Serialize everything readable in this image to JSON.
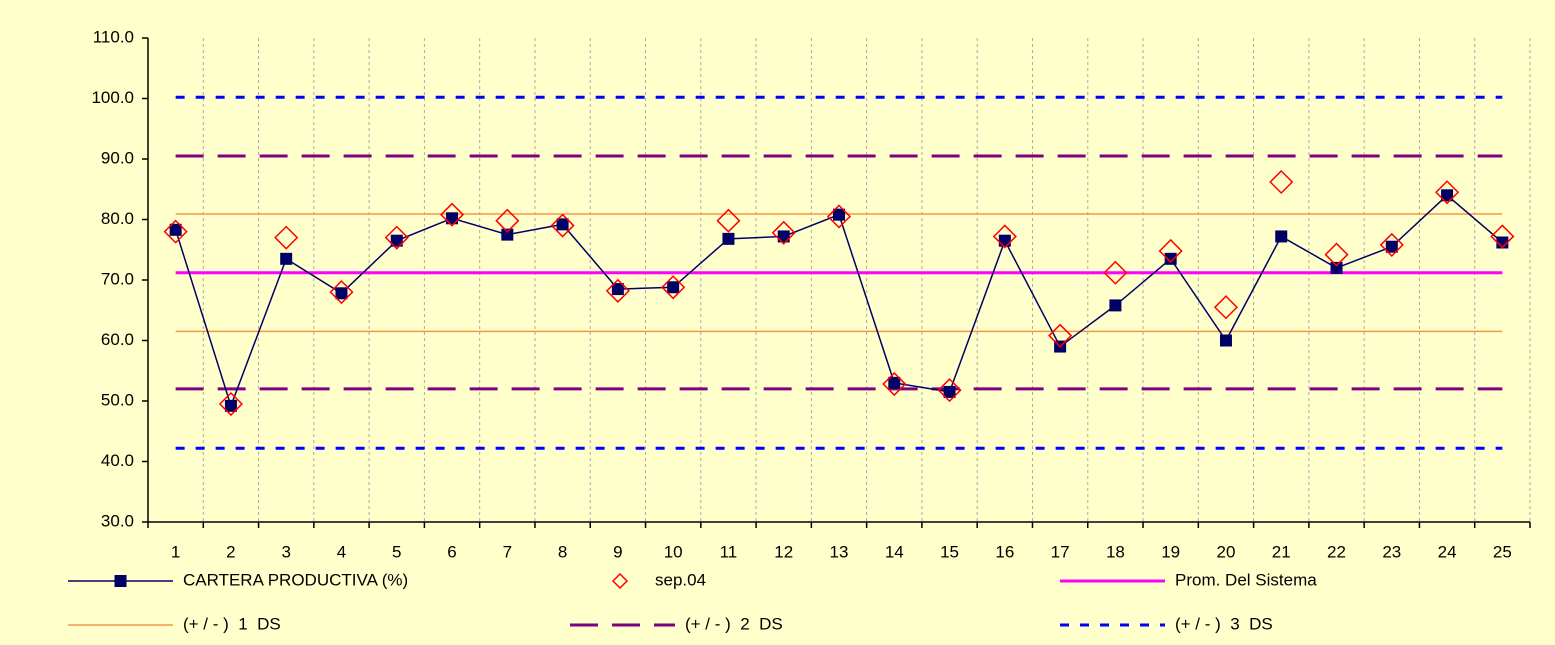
{
  "chart_data": {
    "type": "line",
    "categories": [
      "1",
      "2",
      "3",
      "4",
      "5",
      "6",
      "7",
      "8",
      "9",
      "10",
      "11",
      "12",
      "13",
      "14",
      "15",
      "16",
      "17",
      "18",
      "19",
      "20",
      "21",
      "22",
      "23",
      "24",
      "25"
    ],
    "series": [
      {
        "name": "CARTERA PRODUCTIVA (%)",
        "color": "#000066",
        "marker": "square",
        "line": true,
        "values": [
          78.3,
          49.2,
          73.5,
          67.8,
          76.5,
          80.2,
          77.5,
          79.2,
          68.5,
          68.8,
          76.8,
          77.2,
          80.8,
          53.0,
          51.5,
          76.5,
          59.0,
          65.8,
          73.5,
          60.0,
          77.2,
          72.0,
          75.5,
          84.0,
          76.2
        ]
      },
      {
        "name": "sep.04",
        "color": "#ff0000",
        "marker": "diamond",
        "line": false,
        "values": [
          78.0,
          49.5,
          77.0,
          68.0,
          77.0,
          80.8,
          79.8,
          79.0,
          68.2,
          68.8,
          79.8,
          77.8,
          80.5,
          52.8,
          51.8,
          77.2,
          60.8,
          71.2,
          74.8,
          65.5,
          86.2,
          74.2,
          75.8,
          84.5,
          77.2
        ]
      }
    ],
    "reference_lines": [
      {
        "name": "Prom. Del Sistema",
        "color": "#ff00ff",
        "style": "solid",
        "value": 71.2
      },
      {
        "name": "(+ / - )  1  DS",
        "color": "#f79646",
        "style": "thin",
        "upper": 80.9,
        "lower": 61.5
      },
      {
        "name": "(+ / - )  2  DS",
        "color": "#800080",
        "style": "dashed",
        "upper": 90.5,
        "lower": 52.0
      },
      {
        "name": "(+ / - )  3  DS",
        "color": "#0000ff",
        "style": "dotted",
        "upper": 100.2,
        "lower": 42.2
      }
    ],
    "ylim": [
      30,
      110
    ],
    "yticks": [
      {
        "value": 30,
        "label": "30.0"
      },
      {
        "value": 40,
        "label": "40.0"
      },
      {
        "value": 50,
        "label": "50.0"
      },
      {
        "value": 60,
        "label": "60.0"
      },
      {
        "value": 70,
        "label": "70.0"
      },
      {
        "value": 80,
        "label": "80.0"
      },
      {
        "value": 90,
        "label": "90.0"
      },
      {
        "value": 100,
        "label": "100.0"
      },
      {
        "value": 110,
        "label": "110.0"
      }
    ],
    "grid": true
  }
}
